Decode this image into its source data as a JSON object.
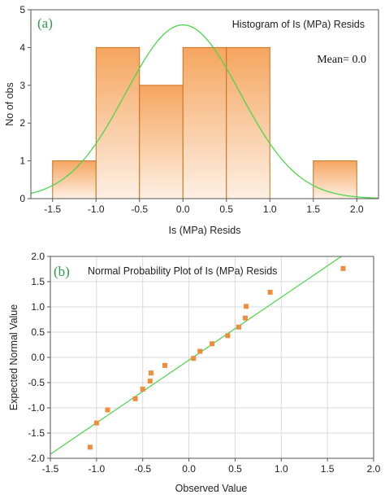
{
  "chart_data": [
    {
      "type": "bar",
      "panel_label": "(a)",
      "title": "Histogram of Is (MPa) Resids",
      "annotation": "Mean= 0.0",
      "xlabel": "Is (MPa) Resids",
      "ylabel": "No of obs",
      "bins": [
        {
          "from": -1.5,
          "to": -1.0,
          "count": 1
        },
        {
          "from": -1.0,
          "to": -0.5,
          "count": 4
        },
        {
          "from": -0.5,
          "to": 0.0,
          "count": 3
        },
        {
          "from": 0.0,
          "to": 0.5,
          "count": 4
        },
        {
          "from": 0.5,
          "to": 1.0,
          "count": 4
        },
        {
          "from": 1.0,
          "to": 1.5,
          "count": 0
        },
        {
          "from": 1.5,
          "to": 2.0,
          "count": 1
        }
      ],
      "normal_curve": {
        "mean": 0.0,
        "sd": 0.66,
        "peak": 4.6
      },
      "xlim": [
        -1.75,
        2.25
      ],
      "ylim": [
        0,
        5
      ],
      "xticks": [
        "-1.5",
        "-1.0",
        "-0.5",
        "0.0",
        "0.5",
        "1.0",
        "1.5",
        "2.0"
      ],
      "yticks": [
        "0",
        "1",
        "2",
        "3",
        "4",
        "5"
      ],
      "colors": {
        "bar_top": "#f5a55f",
        "bar_bottom": "#fdf0e4",
        "bar_edge": "#c8721d",
        "curve": "#4cd64c"
      },
      "grid": false
    },
    {
      "type": "scatter",
      "panel_label": "(b)",
      "title": "Normal Probability Plot of Is (MPa) Resids",
      "xlabel": "Observed Value",
      "ylabel": "Expected Normal Value",
      "points": [
        {
          "x": -1.07,
          "y": -1.78
        },
        {
          "x": -1.0,
          "y": -1.3
        },
        {
          "x": -0.88,
          "y": -1.04
        },
        {
          "x": -0.58,
          "y": -0.82
        },
        {
          "x": -0.5,
          "y": -0.63
        },
        {
          "x": -0.42,
          "y": -0.47
        },
        {
          "x": -0.41,
          "y": -0.31
        },
        {
          "x": -0.26,
          "y": -0.16
        },
        {
          "x": 0.05,
          "y": -0.02
        },
        {
          "x": 0.12,
          "y": 0.12
        },
        {
          "x": 0.25,
          "y": 0.27
        },
        {
          "x": 0.42,
          "y": 0.43
        },
        {
          "x": 0.54,
          "y": 0.6
        },
        {
          "x": 0.61,
          "y": 0.78
        },
        {
          "x": 0.62,
          "y": 1.01
        },
        {
          "x": 0.88,
          "y": 1.29
        },
        {
          "x": 1.67,
          "y": 1.76
        }
      ],
      "fit_line": {
        "x": [
          -1.5,
          1.65
        ],
        "y": [
          -1.92,
          2.0
        ]
      },
      "xlim": [
        -1.5,
        2.0
      ],
      "ylim": [
        -2.0,
        2.0
      ],
      "xticks": [
        "-1.5",
        "-1.0",
        "-0.5",
        "0.0",
        "0.5",
        "1.0",
        "1.5",
        "2.0"
      ],
      "yticks": [
        "-2.0",
        "-1.5",
        "-1.0",
        "-0.5",
        "0.0",
        "0.5",
        "1.0",
        "1.5",
        "2.0"
      ],
      "colors": {
        "points": "#f08c3c",
        "line": "#4cd64c",
        "grid": "#d9d9d9"
      },
      "grid": true
    }
  ]
}
